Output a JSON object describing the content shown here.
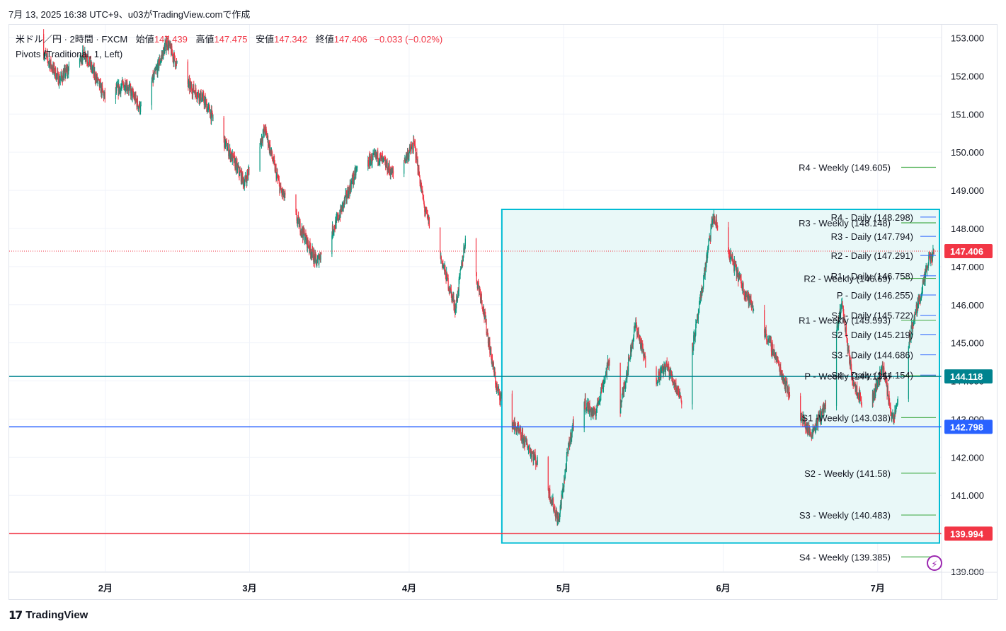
{
  "header": {
    "timestamp_line": "7月 13, 2025 16:38 UTC+9、u03がTradingView.comで作成"
  },
  "legend": {
    "symbol": "米ドル／円 · 2時間 · FXCM",
    "open_label": "始値",
    "open_value": "147.439",
    "high_label": "高値",
    "high_value": "147.475",
    "low_label": "安値",
    "low_value": "147.342",
    "close_label": "終値",
    "close_value": "147.406",
    "change": "−0.033 (−0.02%)",
    "indicator": "Pivots (Traditional, 1, Left)"
  },
  "brand": {
    "name": "TradingView"
  },
  "icons": {
    "brand_logo": "tradingview-logo-icon",
    "alert": "lightning-icon"
  },
  "colors": {
    "up": "#089981",
    "down": "#f23645",
    "pivot": "#4caf50",
    "rect_border": "#00bcd4",
    "rect_fill": "#e9f8f8",
    "teal_line": "#00838f",
    "blue_line": "#2962ff",
    "red_line": "#f23645"
  },
  "chart_data": {
    "type": "candlestick",
    "title": "",
    "y_axis": {
      "min": 139.0,
      "max": 153.0,
      "ticks": [
        "153.000",
        "152.000",
        "151.000",
        "150.000",
        "149.000",
        "148.000",
        "147.000",
        "146.000",
        "145.000",
        "144.000",
        "143.000",
        "142.000",
        "141.000",
        "140.000",
        "139.000"
      ]
    },
    "x_axis": {
      "start": "2025-01-14",
      "end": "2025-07-13",
      "ticks": [
        {
          "date": "2025-02-01",
          "label": "2月"
        },
        {
          "date": "2025-03-01",
          "label": "3月"
        },
        {
          "date": "2025-04-01",
          "label": "4月"
        },
        {
          "date": "2025-05-01",
          "label": "5月"
        },
        {
          "date": "2025-06-01",
          "label": "6月"
        },
        {
          "date": "2025-07-01",
          "label": "7月"
        }
      ]
    },
    "price_path": [
      [
        "2025-01-18",
        153.1
      ],
      [
        "2025-01-23",
        151.9
      ],
      [
        "2025-01-28",
        152.6
      ],
      [
        "2025-02-01",
        151.4
      ],
      [
        "2025-02-05",
        151.8
      ],
      [
        "2025-02-08",
        151.1
      ],
      [
        "2025-02-13",
        152.9
      ],
      [
        "2025-02-16",
        151.9
      ],
      [
        "2025-02-20",
        151.4
      ],
      [
        "2025-02-24",
        150.3
      ],
      [
        "2025-02-28",
        149.2
      ],
      [
        "2025-03-04",
        150.6
      ],
      [
        "2025-03-07",
        149.0
      ],
      [
        "2025-03-10",
        148.3
      ],
      [
        "2025-03-14",
        147.1
      ],
      [
        "2025-03-18",
        148.2
      ],
      [
        "2025-03-22",
        149.6
      ],
      [
        "2025-03-26",
        149.9
      ],
      [
        "2025-03-29",
        149.4
      ],
      [
        "2025-04-02",
        150.2
      ],
      [
        "2025-04-04",
        148.5
      ],
      [
        "2025-04-07",
        147.3
      ],
      [
        "2025-04-10",
        145.9
      ],
      [
        "2025-04-12",
        147.8
      ],
      [
        "2025-04-15",
        146.2
      ],
      [
        "2025-04-18",
        143.8
      ],
      [
        "2025-04-21",
        142.9
      ],
      [
        "2025-04-24",
        142.3
      ],
      [
        "2025-04-27",
        141.6
      ],
      [
        "2025-04-30",
        140.3
      ],
      [
        "2025-05-02",
        142.3
      ],
      [
        "2025-05-04",
        143.6
      ],
      [
        "2025-05-07",
        143.1
      ],
      [
        "2025-05-10",
        144.6
      ],
      [
        "2025-05-12",
        143.3
      ],
      [
        "2025-05-15",
        145.5
      ],
      [
        "2025-05-18",
        143.9
      ],
      [
        "2025-05-21",
        144.4
      ],
      [
        "2025-05-24",
        143.5
      ],
      [
        "2025-05-27",
        145.6
      ],
      [
        "2025-05-30",
        148.3
      ],
      [
        "2025-06-02",
        147.4
      ],
      [
        "2025-06-05",
        146.4
      ],
      [
        "2025-06-08",
        145.6
      ],
      [
        "2025-06-11",
        144.7
      ],
      [
        "2025-06-14",
        143.6
      ],
      [
        "2025-06-18",
        142.6
      ],
      [
        "2025-06-21",
        143.4
      ],
      [
        "2025-06-24",
        146.1
      ],
      [
        "2025-06-26",
        144.1
      ],
      [
        "2025-06-29",
        143.1
      ],
      [
        "2025-07-02",
        144.4
      ],
      [
        "2025-07-04",
        142.9
      ],
      [
        "2025-07-06",
        144.3
      ],
      [
        "2025-07-08",
        145.6
      ],
      [
        "2025-07-10",
        146.6
      ],
      [
        "2025-07-11",
        147.2
      ],
      [
        "2025-07-13",
        147.406
      ]
    ],
    "current_price": {
      "value": 147.406,
      "label": "147.406"
    },
    "horizontal_lines": [
      {
        "value": 144.118,
        "label": "144.118",
        "color": "#00838f"
      },
      {
        "value": 142.798,
        "label": "142.798",
        "color": "#2962ff"
      },
      {
        "value": 139.994,
        "label": "139.994",
        "color": "#f23645"
      }
    ],
    "rectangle": {
      "x_start": "2025-04-19",
      "x_end": "2025-07-13",
      "y_top": 148.5,
      "y_bottom": 139.75
    },
    "pivots_weekly": [
      {
        "label": "R4 - Weekly (149.605)",
        "value": 149.605
      },
      {
        "label": "R3 - Weekly (148.148)",
        "value": 148.148
      },
      {
        "label": "R2 - Weekly (146.69)",
        "value": 146.69
      },
      {
        "label": "R1 - Weekly (145.593)",
        "value": 145.593
      },
      {
        "label": "P - Weekly (144.135)",
        "value": 144.135
      },
      {
        "label": "S1 -Weekly (143.038)",
        "value": 143.038
      },
      {
        "label": "S2 - Weekly (141.58)",
        "value": 141.58
      },
      {
        "label": "S3 - Weekly (140.483)",
        "value": 140.483
      },
      {
        "label": "S4 - Weekly (139.385)",
        "value": 139.385
      }
    ],
    "pivots_daily": [
      {
        "label": "R4 - Daily (148.298)",
        "value": 148.298
      },
      {
        "label": "R3 - Daily (147.794)",
        "value": 147.794
      },
      {
        "label": "R2 - Daily (147.291)",
        "value": 147.291
      },
      {
        "label": "R1 - Daily (146.758)",
        "value": 146.758
      },
      {
        "label": "P - Daily (146.255)",
        "value": 146.255
      },
      {
        "label": "S1 - Daily (145.722)",
        "value": 145.722
      },
      {
        "label": "S2 - Daily (145.219)",
        "value": 145.219
      },
      {
        "label": "S3 - Daily (144.686)",
        "value": 144.686
      },
      {
        "label": "S4 - Daily (144.154)",
        "value": 144.154
      }
    ]
  }
}
